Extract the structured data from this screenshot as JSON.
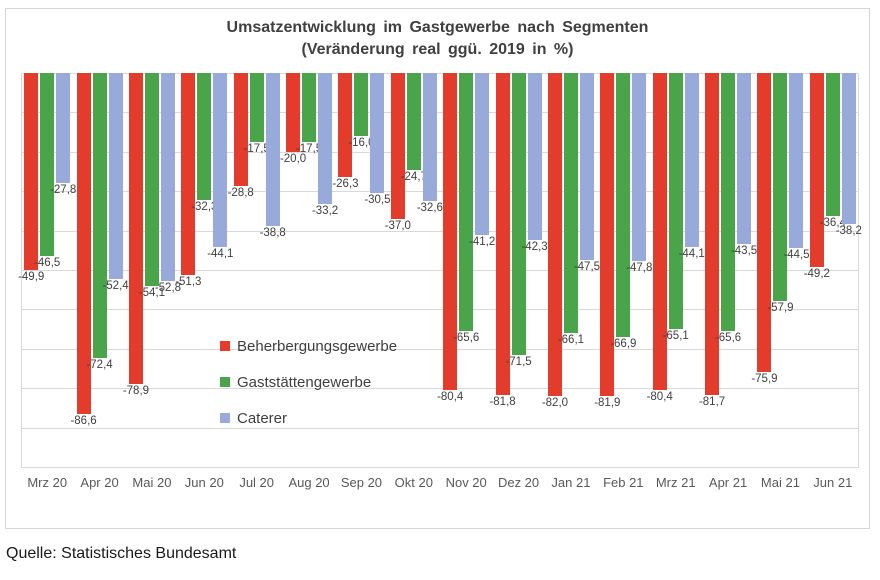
{
  "title": {
    "line1": "Umsatzentwicklung im Gastgewerbe nach Segmenten",
    "line2": "(Veränderung real ggü. 2019 in %)"
  },
  "source": "Quelle: Statistisches Bundesamt",
  "colors": {
    "series_red": "#e33c2c",
    "series_green": "#4aa44a",
    "series_blue": "#98aada",
    "gridline": "#d9d9d9",
    "chart_border": "#d6d6d6",
    "title_text": "#404040",
    "data_label_text": "#404040",
    "axis_label_text": "#595959",
    "background": "#ffffff"
  },
  "chart_data": {
    "type": "bar",
    "title": "Umsatzentwicklung im Gastgewerbe nach Segmenten (Veränderung real ggü. 2019 in %)",
    "categories": [
      "Mrz 20",
      "Apr 20",
      "Mai 20",
      "Jun 20",
      "Jul 20",
      "Aug 20",
      "Sep 20",
      "Okt 20",
      "Nov 20",
      "Dez 20",
      "Jan 21",
      "Feb 21",
      "Mrz 21",
      "Apr 21",
      "Mai 21",
      "Jun 21"
    ],
    "series": [
      {
        "name": "Beherbergungsgewerbe",
        "color": "#e33c2c",
        "values": [
          -49.9,
          -86.6,
          -78.9,
          -51.3,
          -28.8,
          -20.0,
          -26.3,
          -37.0,
          -80.4,
          -81.8,
          -82.0,
          -81.9,
          -80.4,
          -81.7,
          -75.9,
          -49.2
        ]
      },
      {
        "name": "Gaststättengewerbe",
        "color": "#4aa44a",
        "values": [
          -46.5,
          -72.4,
          -54.1,
          -32.3,
          -17.5,
          -17.5,
          -16.0,
          -24.7,
          -65.6,
          -71.5,
          -66.1,
          -66.9,
          -65.1,
          -65.6,
          -57.9,
          -36.4
        ]
      },
      {
        "name": "Caterer",
        "color": "#98aada",
        "values": [
          -27.8,
          -52.4,
          -52.8,
          -44.1,
          -38.8,
          -33.2,
          -30.5,
          -32.6,
          -41.2,
          -42.3,
          -47.5,
          -47.8,
          -44.1,
          -43.5,
          -44.5,
          -38.2
        ]
      }
    ],
    "xlabel": "",
    "ylabel": "",
    "ylim": [
      -100,
      0
    ],
    "gridline_step": 10,
    "y_ticks_visible": false,
    "grid": true,
    "data_labels": true,
    "label_decimal_separator": ",",
    "legend_position": "overlay-center-left"
  }
}
